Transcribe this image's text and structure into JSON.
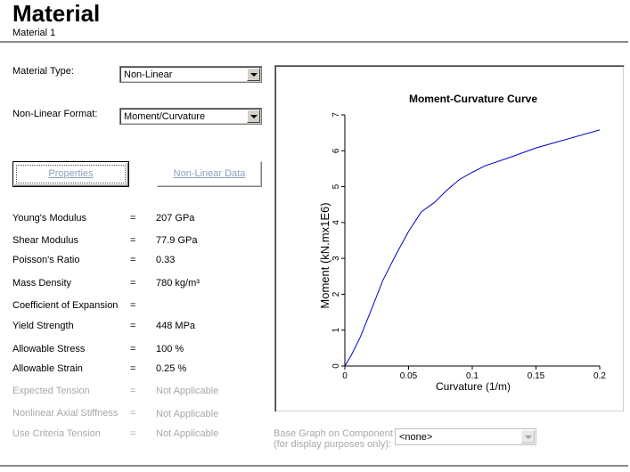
{
  "header": {
    "title": "Material",
    "subtitle": "Material 1"
  },
  "form": {
    "material_type_label": "Material Type:",
    "material_type_value": "Non-Linear",
    "nonlinear_format_label": "Non-Linear Format:",
    "nonlinear_format_value": "Moment/Curvature"
  },
  "buttons": {
    "properties": "Properties",
    "nonlinear_data": "Non-Linear Data"
  },
  "properties": {
    "equals": "=",
    "youngs_modulus": {
      "label": "Young's Modulus",
      "value": "207 GPa"
    },
    "shear_modulus": {
      "label": "Shear Modulus",
      "value": "77.9 GPa"
    },
    "poissons_ratio": {
      "label": "Poisson's Ratio",
      "value": "0.33"
    },
    "mass_density": {
      "label": "Mass Density",
      "value": "780 kg/m³"
    },
    "coef_expansion": {
      "label": "Coefficient of Expansion",
      "value": ""
    },
    "yield_strength": {
      "label": "Yield Strength",
      "value": "448 MPa"
    },
    "allowable_stress": {
      "label": "Allowable Stress",
      "value": "100 %"
    },
    "allowable_strain": {
      "label": "Allowable Strain",
      "value": "0.25 %"
    },
    "expected_tension": {
      "label": "Expected Tension",
      "value": "Not Applicable"
    },
    "nonlinear_axial": {
      "label": "Nonlinear Axial Stiffness",
      "value": "Not Applicable"
    },
    "use_criteria": {
      "label": "Use Criteria Tension",
      "value": "Not Applicable"
    }
  },
  "base_graph": {
    "label_line1": "Base Graph on Component",
    "label_line2": "(for display purposes only):",
    "value": "<none>"
  },
  "colors": {
    "curve": "#0000c8",
    "disabled_text": "#a8a8a8"
  },
  "chart_data": {
    "type": "line",
    "title": "Moment-Curvature Curve",
    "xlabel": "Curvature (1/m)",
    "ylabel": "Moment (kN.mx1E6)",
    "xlim": [
      0,
      0.2
    ],
    "ylim": [
      0,
      7
    ],
    "xticks": [
      "0",
      "0.05",
      "0.1",
      "0.15",
      "0.2"
    ],
    "yticks": [
      "0",
      "1",
      "2",
      "3",
      "4",
      "5",
      "6",
      "7"
    ],
    "grid": false,
    "series": [
      {
        "x": [
          0,
          0.005,
          0.012,
          0.02,
          0.03,
          0.04,
          0.05,
          0.06,
          0.07,
          0.08,
          0.09,
          0.1,
          0.11,
          0.13,
          0.15,
          0.17,
          0.2
        ],
        "y": [
          0,
          0.3,
          0.8,
          1.5,
          2.4,
          3.1,
          3.75,
          4.3,
          4.55,
          4.9,
          5.2,
          5.4,
          5.58,
          5.82,
          6.08,
          6.28,
          6.58
        ]
      }
    ]
  }
}
